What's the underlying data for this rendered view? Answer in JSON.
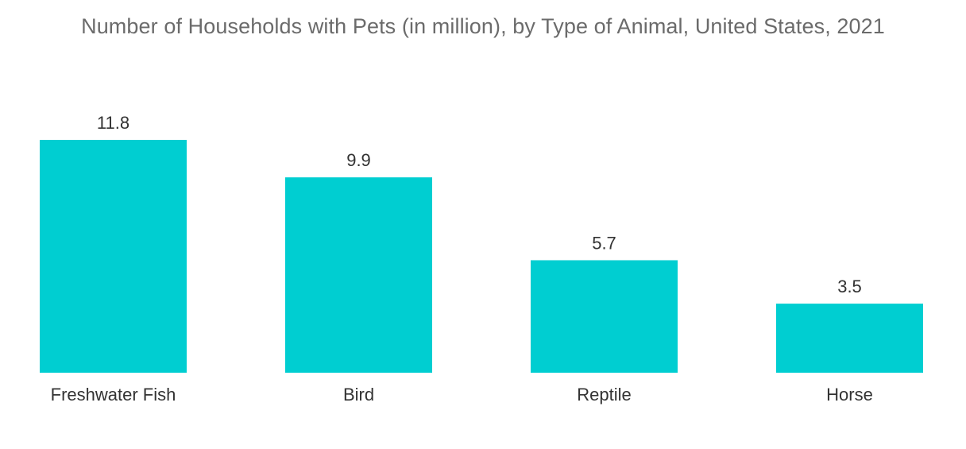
{
  "chart_data": {
    "type": "bar",
    "title": "Number of Households with Pets (in million), by Type of Animal, United States, 2021",
    "categories": [
      "Freshwater Fish",
      "Bird",
      "Reptile",
      "Horse"
    ],
    "values": [
      11.8,
      9.9,
      5.7,
      3.5
    ],
    "value_labels": [
      "11.8",
      "9.9",
      "5.7",
      "3.5"
    ],
    "xlabel": "",
    "ylabel": "",
    "ylim": [
      0,
      11.8
    ],
    "grid": false,
    "legend": "none",
    "bar_color": "#00CED1"
  }
}
